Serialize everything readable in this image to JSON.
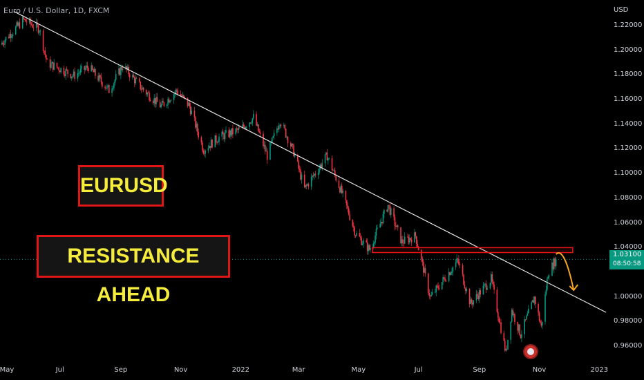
{
  "header": {
    "symbol_title": "Euro / U.S. Dollar, 1D, FXCM",
    "currency": "USD"
  },
  "annotations": {
    "box1": "EURUSD",
    "box2": "RESISTANCE AHEAD"
  },
  "price_tag": {
    "price": "1.03100",
    "countdown": "08:50:58"
  },
  "icons": {
    "event_icon": "us-flag-icon"
  },
  "colors": {
    "up": "#089981",
    "down": "#f23645",
    "trendline": "#e6e6e6",
    "resistance": "#e01515",
    "arrow": "#f5a623",
    "label_box_text": "#f5ec3c"
  },
  "chart_data": {
    "type": "candlestick",
    "ylim": [
      0.95,
      1.23
    ],
    "xlim": [
      "2021-05-01",
      "2023-01-10"
    ],
    "y_ticks": [
      "1.22000",
      "1.20000",
      "1.18000",
      "1.16000",
      "1.14000",
      "1.12000",
      "1.10000",
      "1.08000",
      "1.06000",
      "1.04000",
      "1.00000",
      "0.98000",
      "0.96000"
    ],
    "x_ticks": [
      {
        "label": "May",
        "date": "2021-05-01"
      },
      {
        "label": "Jul",
        "date": "2021-07-01"
      },
      {
        "label": "Sep",
        "date": "2021-09-01"
      },
      {
        "label": "Nov",
        "date": "2021-11-01"
      },
      {
        "label": "2022",
        "date": "2022-01-01"
      },
      {
        "label": "Mar",
        "date": "2022-03-01"
      },
      {
        "label": "May",
        "date": "2022-05-01"
      },
      {
        "label": "Jul",
        "date": "2022-07-01"
      },
      {
        "label": "Sep",
        "date": "2022-09-01"
      },
      {
        "label": "Nov",
        "date": "2022-11-01"
      },
      {
        "label": "2023",
        "date": "2023-01-01"
      }
    ],
    "path_points": [
      [
        "2021-05-01",
        1.205
      ],
      [
        "2021-05-25",
        1.225
      ],
      [
        "2021-06-10",
        1.218
      ],
      [
        "2021-06-18",
        1.19
      ],
      [
        "2021-06-30",
        1.186
      ],
      [
        "2021-07-15",
        1.18
      ],
      [
        "2021-07-30",
        1.187
      ],
      [
        "2021-08-20",
        1.168
      ],
      [
        "2021-09-03",
        1.188
      ],
      [
        "2021-09-22",
        1.17
      ],
      [
        "2021-10-12",
        1.155
      ],
      [
        "2021-10-28",
        1.168
      ],
      [
        "2021-11-10",
        1.155
      ],
      [
        "2021-11-24",
        1.12
      ],
      [
        "2021-12-10",
        1.13
      ],
      [
        "2021-12-31",
        1.136
      ],
      [
        "2022-01-14",
        1.146
      ],
      [
        "2022-01-28",
        1.115
      ],
      [
        "2022-02-10",
        1.144
      ],
      [
        "2022-02-24",
        1.118
      ],
      [
        "2022-03-07",
        1.088
      ],
      [
        "2022-03-30",
        1.115
      ],
      [
        "2022-04-14",
        1.085
      ],
      [
        "2022-04-28",
        1.052
      ],
      [
        "2022-05-12",
        1.039
      ],
      [
        "2022-05-31",
        1.075
      ],
      [
        "2022-06-14",
        1.045
      ],
      [
        "2022-06-28",
        1.05
      ],
      [
        "2022-07-13",
        1.0
      ],
      [
        "2022-08-10",
        1.03
      ],
      [
        "2022-08-23",
        0.995
      ],
      [
        "2022-09-13",
        1.015
      ],
      [
        "2022-09-28",
        0.955
      ],
      [
        "2022-10-04",
        0.99
      ],
      [
        "2022-10-13",
        0.97
      ],
      [
        "2022-10-27",
        1.0
      ],
      [
        "2022-11-03",
        0.976
      ],
      [
        "2022-11-10",
        1.02
      ],
      [
        "2022-11-18",
        1.031
      ]
    ],
    "trendline": [
      [
        "2021-05-15",
        1.232
      ],
      [
        "2023-01-08",
        0.988
      ]
    ],
    "resistance_zone": {
      "from": "2022-05-15",
      "to": "2022-12-05",
      "low": 1.0365,
      "high": 1.0405
    },
    "current_price": 1.031
  }
}
